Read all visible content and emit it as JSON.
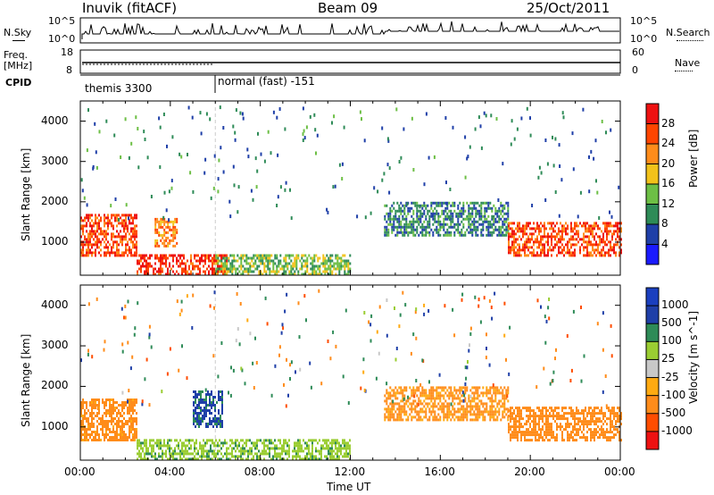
{
  "header": {
    "station": "Inuvik (fitACF)",
    "beam": "Beam 09",
    "date": "25/Oct/2011"
  },
  "side_labels": {
    "nsky": "N.Sky",
    "nsearch": "N.Search",
    "freq": "Freq.",
    "mhz": "[MHz]",
    "nave": "Nave",
    "cpid": "CPID"
  },
  "noise_panel": {
    "left_ticks": [
      "10^5",
      "10^0"
    ],
    "right_ticks": [
      "10^5",
      "10^0"
    ]
  },
  "freq_panel": {
    "left_ticks": [
      "18",
      "8"
    ],
    "right_ticks": [
      "60",
      "0"
    ]
  },
  "cpid_segments": [
    {
      "label": "themis 3300",
      "start_hour": 0
    },
    {
      "label": "normal (fast) -151",
      "start_hour": 6
    }
  ],
  "colors": {
    "power_scale": [
      "#1a1aff",
      "#1f3fa8",
      "#2e8b57",
      "#6dbf45",
      "#f2c21a",
      "#ff8c1a",
      "#ff4500",
      "#ee1111"
    ],
    "velocity_scale": [
      "#ee1111",
      "#ff4d00",
      "#ff8c1a",
      "#ffaa11",
      "#c8c8c8",
      "#9acd32",
      "#2e8b57",
      "#1f3fa8",
      "#1a3fbf"
    ]
  },
  "chart_data": [
    {
      "type": "heatmap",
      "title": "",
      "xlabel": "",
      "ylabel": "Slant Range [km]",
      "colorbar_label": "Power [dB]",
      "colorbar_ticks": [
        "28",
        "24",
        "20",
        "16",
        "12",
        "8",
        "4"
      ],
      "xlim": [
        0,
        24
      ],
      "ylim": [
        180,
        4500
      ],
      "x_ticks": [
        "00:00",
        "04:00",
        "08:00",
        "12:00",
        "16:00",
        "20:00",
        "00:00"
      ],
      "y_ticks": [
        "1000",
        "2000",
        "3000",
        "4000"
      ],
      "regions": [
        {
          "t0": 0.0,
          "t1": 2.5,
          "r0": 700,
          "r1": 1700,
          "value": 26
        },
        {
          "t0": 2.5,
          "t1": 6.5,
          "r0": 200,
          "r1": 700,
          "value": 28
        },
        {
          "t0": 3.3,
          "t1": 4.3,
          "r0": 900,
          "r1": 1600,
          "value": 22
        },
        {
          "t0": 6.0,
          "t1": 12.0,
          "r0": 200,
          "r1": 700,
          "value": 14
        },
        {
          "t0": 13.5,
          "t1": 19.0,
          "r0": 1200,
          "r1": 2000,
          "value": 9
        },
        {
          "t0": 19.0,
          "t1": 24.0,
          "r0": 700,
          "r1": 1500,
          "value": 26
        }
      ]
    },
    {
      "type": "heatmap",
      "title": "",
      "xlabel": "Time UT",
      "ylabel": "Slant Range [km]",
      "colorbar_label": "Velocity [m s^-1]",
      "colorbar_ticks": [
        "1000",
        "500",
        "100",
        "25",
        "-25",
        "-100",
        "-500",
        "-1000"
      ],
      "xlim": [
        0,
        24
      ],
      "ylim": [
        180,
        4500
      ],
      "x_ticks": [
        "00:00",
        "04:00",
        "08:00",
        "12:00",
        "16:00",
        "20:00",
        "00:00"
      ],
      "y_ticks": [
        "1000",
        "2000",
        "3000",
        "4000"
      ],
      "regions": [
        {
          "t0": 0.0,
          "t1": 2.5,
          "r0": 700,
          "r1": 1700,
          "value": -150
        },
        {
          "t0": 2.5,
          "t1": 12.0,
          "r0": 200,
          "r1": 700,
          "value": 80
        },
        {
          "t0": 5.0,
          "t1": 6.3,
          "r0": 1000,
          "r1": 1900,
          "value": 600
        },
        {
          "t0": 13.5,
          "t1": 19.0,
          "r0": 1200,
          "r1": 2000,
          "value": -120
        },
        {
          "t0": 19.0,
          "t1": 24.0,
          "r0": 700,
          "r1": 1500,
          "value": -300
        }
      ]
    }
  ]
}
